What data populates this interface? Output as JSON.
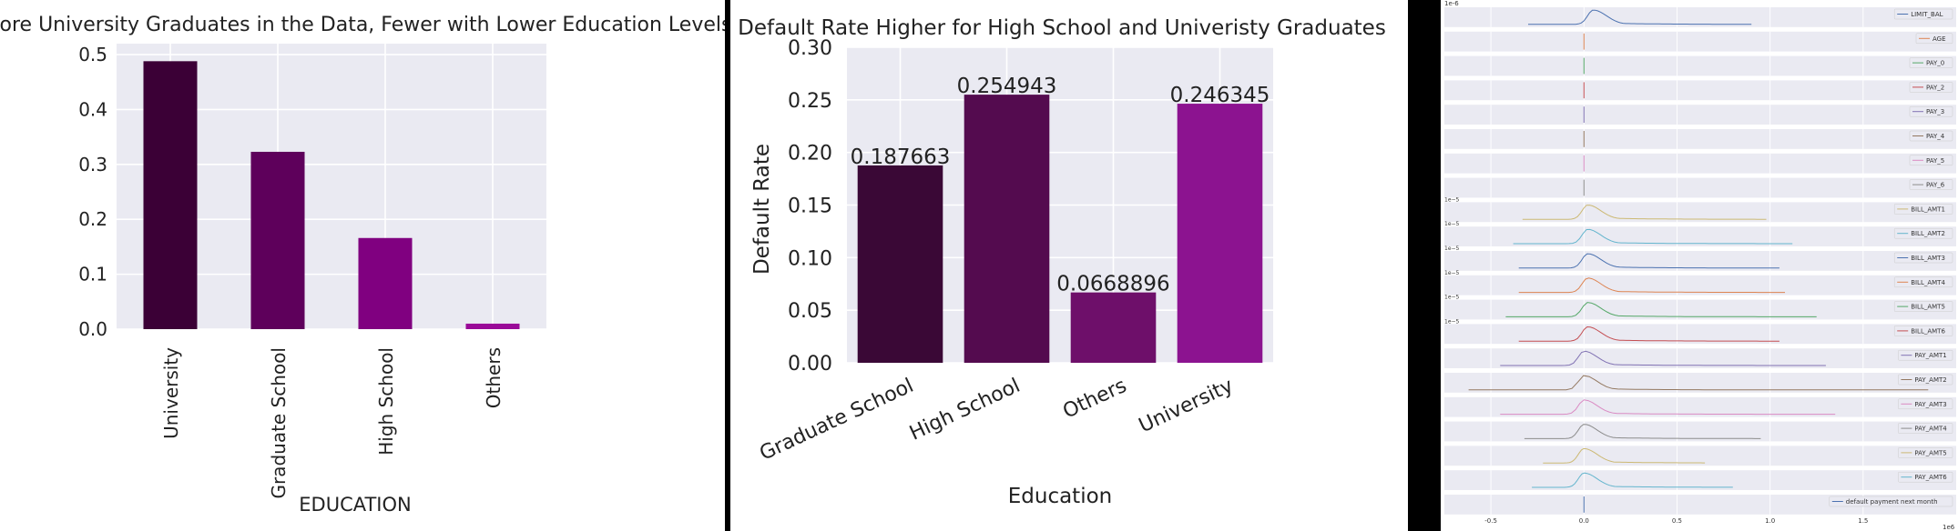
{
  "chart_data": [
    {
      "type": "bar",
      "title": "More University Graduates in the Data, Fewer with Lower Education Levels",
      "xlabel": "EDUCATION",
      "ylabel": "",
      "categories": [
        "University",
        "Graduate School",
        "High School",
        "Others"
      ],
      "values": [
        0.488,
        0.323,
        0.166,
        0.01
      ],
      "yticks": [
        "0.0",
        "0.1",
        "0.2",
        "0.3",
        "0.4",
        "0.5"
      ],
      "ylim": [
        0,
        0.52
      ],
      "colors": [
        "#3b0036",
        "#5e005b",
        "#800080",
        "#9a0a98"
      ],
      "grid": true
    },
    {
      "type": "bar",
      "title": "Default Rate Higher for High School and Univeristy Graduates",
      "xlabel": "Education",
      "ylabel": "Default Rate",
      "categories": [
        "Graduate School",
        "High School",
        "Others",
        "University"
      ],
      "values": [
        0.187663,
        0.254943,
        0.0668896,
        0.246345
      ],
      "data_labels": [
        "0.187663",
        "0.254943",
        "0.0668896",
        "0.246345"
      ],
      "yticks": [
        "0.00",
        "0.05",
        "0.10",
        "0.15",
        "0.20",
        "0.25",
        "0.30"
      ],
      "ylim": [
        0,
        0.3
      ],
      "colors": [
        "#3a0836",
        "#540b4f",
        "#6e0f6a",
        "#8c1390"
      ],
      "grid": true
    },
    {
      "type": "line",
      "kind": "density (KDE) subplots",
      "top_offset_label": "1e-6",
      "bottom_offset_label": "1e6",
      "xticks": [
        "-0.5",
        "0.0",
        "0.5",
        "1.0",
        "1.5"
      ],
      "xlim": [
        -0.75,
        2.0
      ],
      "series": [
        {
          "name": "LIMIT_BAL",
          "color": "#4c72b0",
          "peak": 0.05,
          "min": -0.3,
          "max": 0.9,
          "offset_label": ""
        },
        {
          "name": "AGE",
          "color": "#dd8452",
          "peak": 0.0,
          "min": 0.0,
          "max": 0.0,
          "offset_label": ""
        },
        {
          "name": "PAY_0",
          "color": "#55a868",
          "peak": 0.0,
          "min": 0.0,
          "max": 0.0,
          "offset_label": ""
        },
        {
          "name": "PAY_2",
          "color": "#c44e52",
          "peak": 0.0,
          "min": 0.0,
          "max": 0.0,
          "offset_label": ""
        },
        {
          "name": "PAY_3",
          "color": "#8172b3",
          "peak": 0.0,
          "min": 0.0,
          "max": 0.0,
          "offset_label": ""
        },
        {
          "name": "PAY_4",
          "color": "#937860",
          "peak": 0.0,
          "min": 0.0,
          "max": 0.0,
          "offset_label": ""
        },
        {
          "name": "PAY_5",
          "color": "#da8bc3",
          "peak": 0.0,
          "min": 0.0,
          "max": 0.0,
          "offset_label": ""
        },
        {
          "name": "PAY_6",
          "color": "#8c8c8c",
          "peak": 0.0,
          "min": 0.0,
          "max": 0.0,
          "offset_label": ""
        },
        {
          "name": "BILL_AMT1",
          "color": "#ccb974",
          "peak": 0.02,
          "min": -0.33,
          "max": 0.98,
          "offset_label": "1e−5"
        },
        {
          "name": "BILL_AMT2",
          "color": "#64b5cd",
          "peak": 0.02,
          "min": -0.38,
          "max": 1.12,
          "offset_label": "1e−5"
        },
        {
          "name": "BILL_AMT3",
          "color": "#4c72b0",
          "peak": 0.02,
          "min": -0.35,
          "max": 1.05,
          "offset_label": "1e−5"
        },
        {
          "name": "BILL_AMT4",
          "color": "#dd8452",
          "peak": 0.02,
          "min": -0.35,
          "max": 1.08,
          "offset_label": "1e−5"
        },
        {
          "name": "BILL_AMT5",
          "color": "#55a868",
          "peak": 0.02,
          "min": -0.42,
          "max": 1.25,
          "offset_label": "1e−5"
        },
        {
          "name": "BILL_AMT6",
          "color": "#c44e52",
          "peak": 0.02,
          "min": -0.35,
          "max": 1.05,
          "offset_label": "1e−5"
        },
        {
          "name": "PAY_AMT1",
          "color": "#8172b3",
          "peak": 0.0,
          "min": -0.45,
          "max": 1.3,
          "offset_label": ""
        },
        {
          "name": "PAY_AMT2",
          "color": "#937860",
          "peak": 0.0,
          "min": -0.62,
          "max": 1.85,
          "offset_label": ""
        },
        {
          "name": "PAY_AMT3",
          "color": "#da8bc3",
          "peak": 0.0,
          "min": -0.45,
          "max": 1.35,
          "offset_label": ""
        },
        {
          "name": "PAY_AMT4",
          "color": "#8c8c8c",
          "peak": 0.0,
          "min": -0.32,
          "max": 0.95,
          "offset_label": ""
        },
        {
          "name": "PAY_AMT5",
          "color": "#ccb974",
          "peak": 0.0,
          "min": -0.22,
          "max": 0.65,
          "offset_label": ""
        },
        {
          "name": "PAY_AMT6",
          "color": "#64b5cd",
          "peak": 0.0,
          "min": -0.28,
          "max": 0.8,
          "offset_label": ""
        },
        {
          "name": "default payment next month",
          "color": "#4c72b0",
          "peak": 0.0,
          "min": 0.0,
          "max": 0.0,
          "offset_label": ""
        }
      ]
    }
  ]
}
